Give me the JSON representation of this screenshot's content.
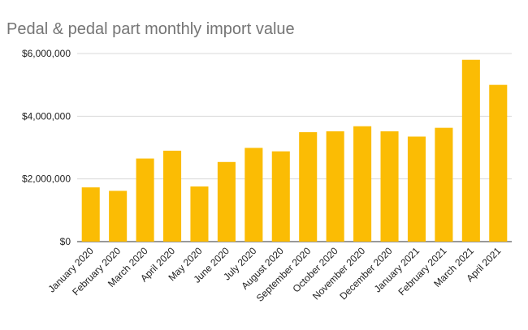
{
  "chart_data": {
    "type": "bar",
    "title": "Pedal & pedal part monthly import value",
    "xlabel": "",
    "ylabel": "",
    "categories": [
      "January 2020",
      "February 2020",
      "March 2020",
      "April 2020",
      "May 2020",
      "June 2020",
      "July 2020",
      "August 2020",
      "September 2020",
      "October 2020",
      "November 2020",
      "December 2020",
      "January 2021",
      "February 2021",
      "March 2021",
      "April 2021"
    ],
    "values": [
      1730000,
      1620000,
      2650000,
      2900000,
      1760000,
      2540000,
      2990000,
      2880000,
      3490000,
      3520000,
      3680000,
      3520000,
      3350000,
      3630000,
      5800000,
      5000000
    ],
    "ylim": [
      0,
      6000000
    ],
    "yticks": [
      0,
      2000000,
      4000000,
      6000000
    ],
    "ytick_labels": [
      "$0",
      "$2,000,000",
      "$4,000,000",
      "$6,000,000"
    ],
    "grid": true,
    "legend": "none",
    "colors": {
      "bar": "#fbbc04",
      "title": "#757575",
      "grid": "#d9d9d9",
      "axis": "#333333",
      "label": "#222222"
    }
  }
}
